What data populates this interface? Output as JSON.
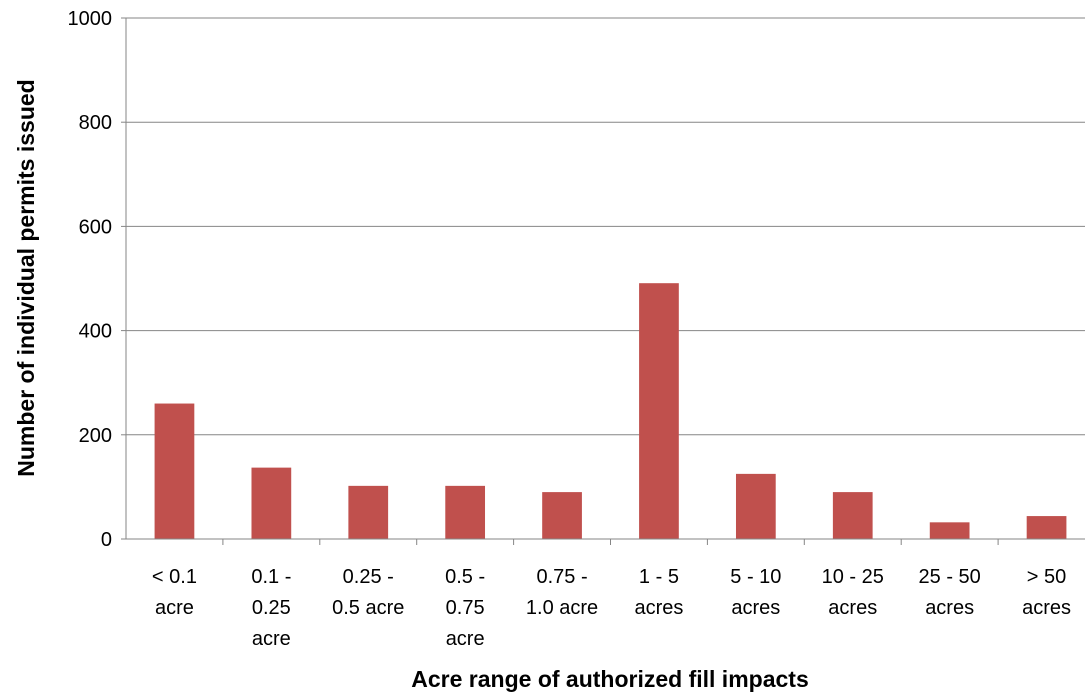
{
  "chart_data": {
    "type": "bar",
    "title": "",
    "xlabel": "Acre range of authorized fill impacts",
    "ylabel": "Number of individual permits issued",
    "ylim": [
      0,
      1000
    ],
    "yticks": [
      0,
      200,
      400,
      600,
      800,
      1000
    ],
    "grid": true,
    "legend": "none",
    "bar_color": "#c0504d",
    "categories": [
      [
        "< 0.1",
        "acre"
      ],
      [
        "0.1 -",
        "0.25",
        "acre"
      ],
      [
        "0.25 -",
        "0.5 acre"
      ],
      [
        "0.5 -",
        "0.75",
        "acre"
      ],
      [
        "0.75 -",
        "1.0 acre"
      ],
      [
        "1 - 5",
        "acres"
      ],
      [
        "5 - 10",
        "acres"
      ],
      [
        "10 - 25",
        "acres"
      ],
      [
        "25 - 50",
        "acres"
      ],
      [
        "> 50",
        "acres"
      ]
    ],
    "values": [
      260,
      137,
      102,
      102,
      90,
      491,
      125,
      90,
      32,
      44
    ]
  }
}
